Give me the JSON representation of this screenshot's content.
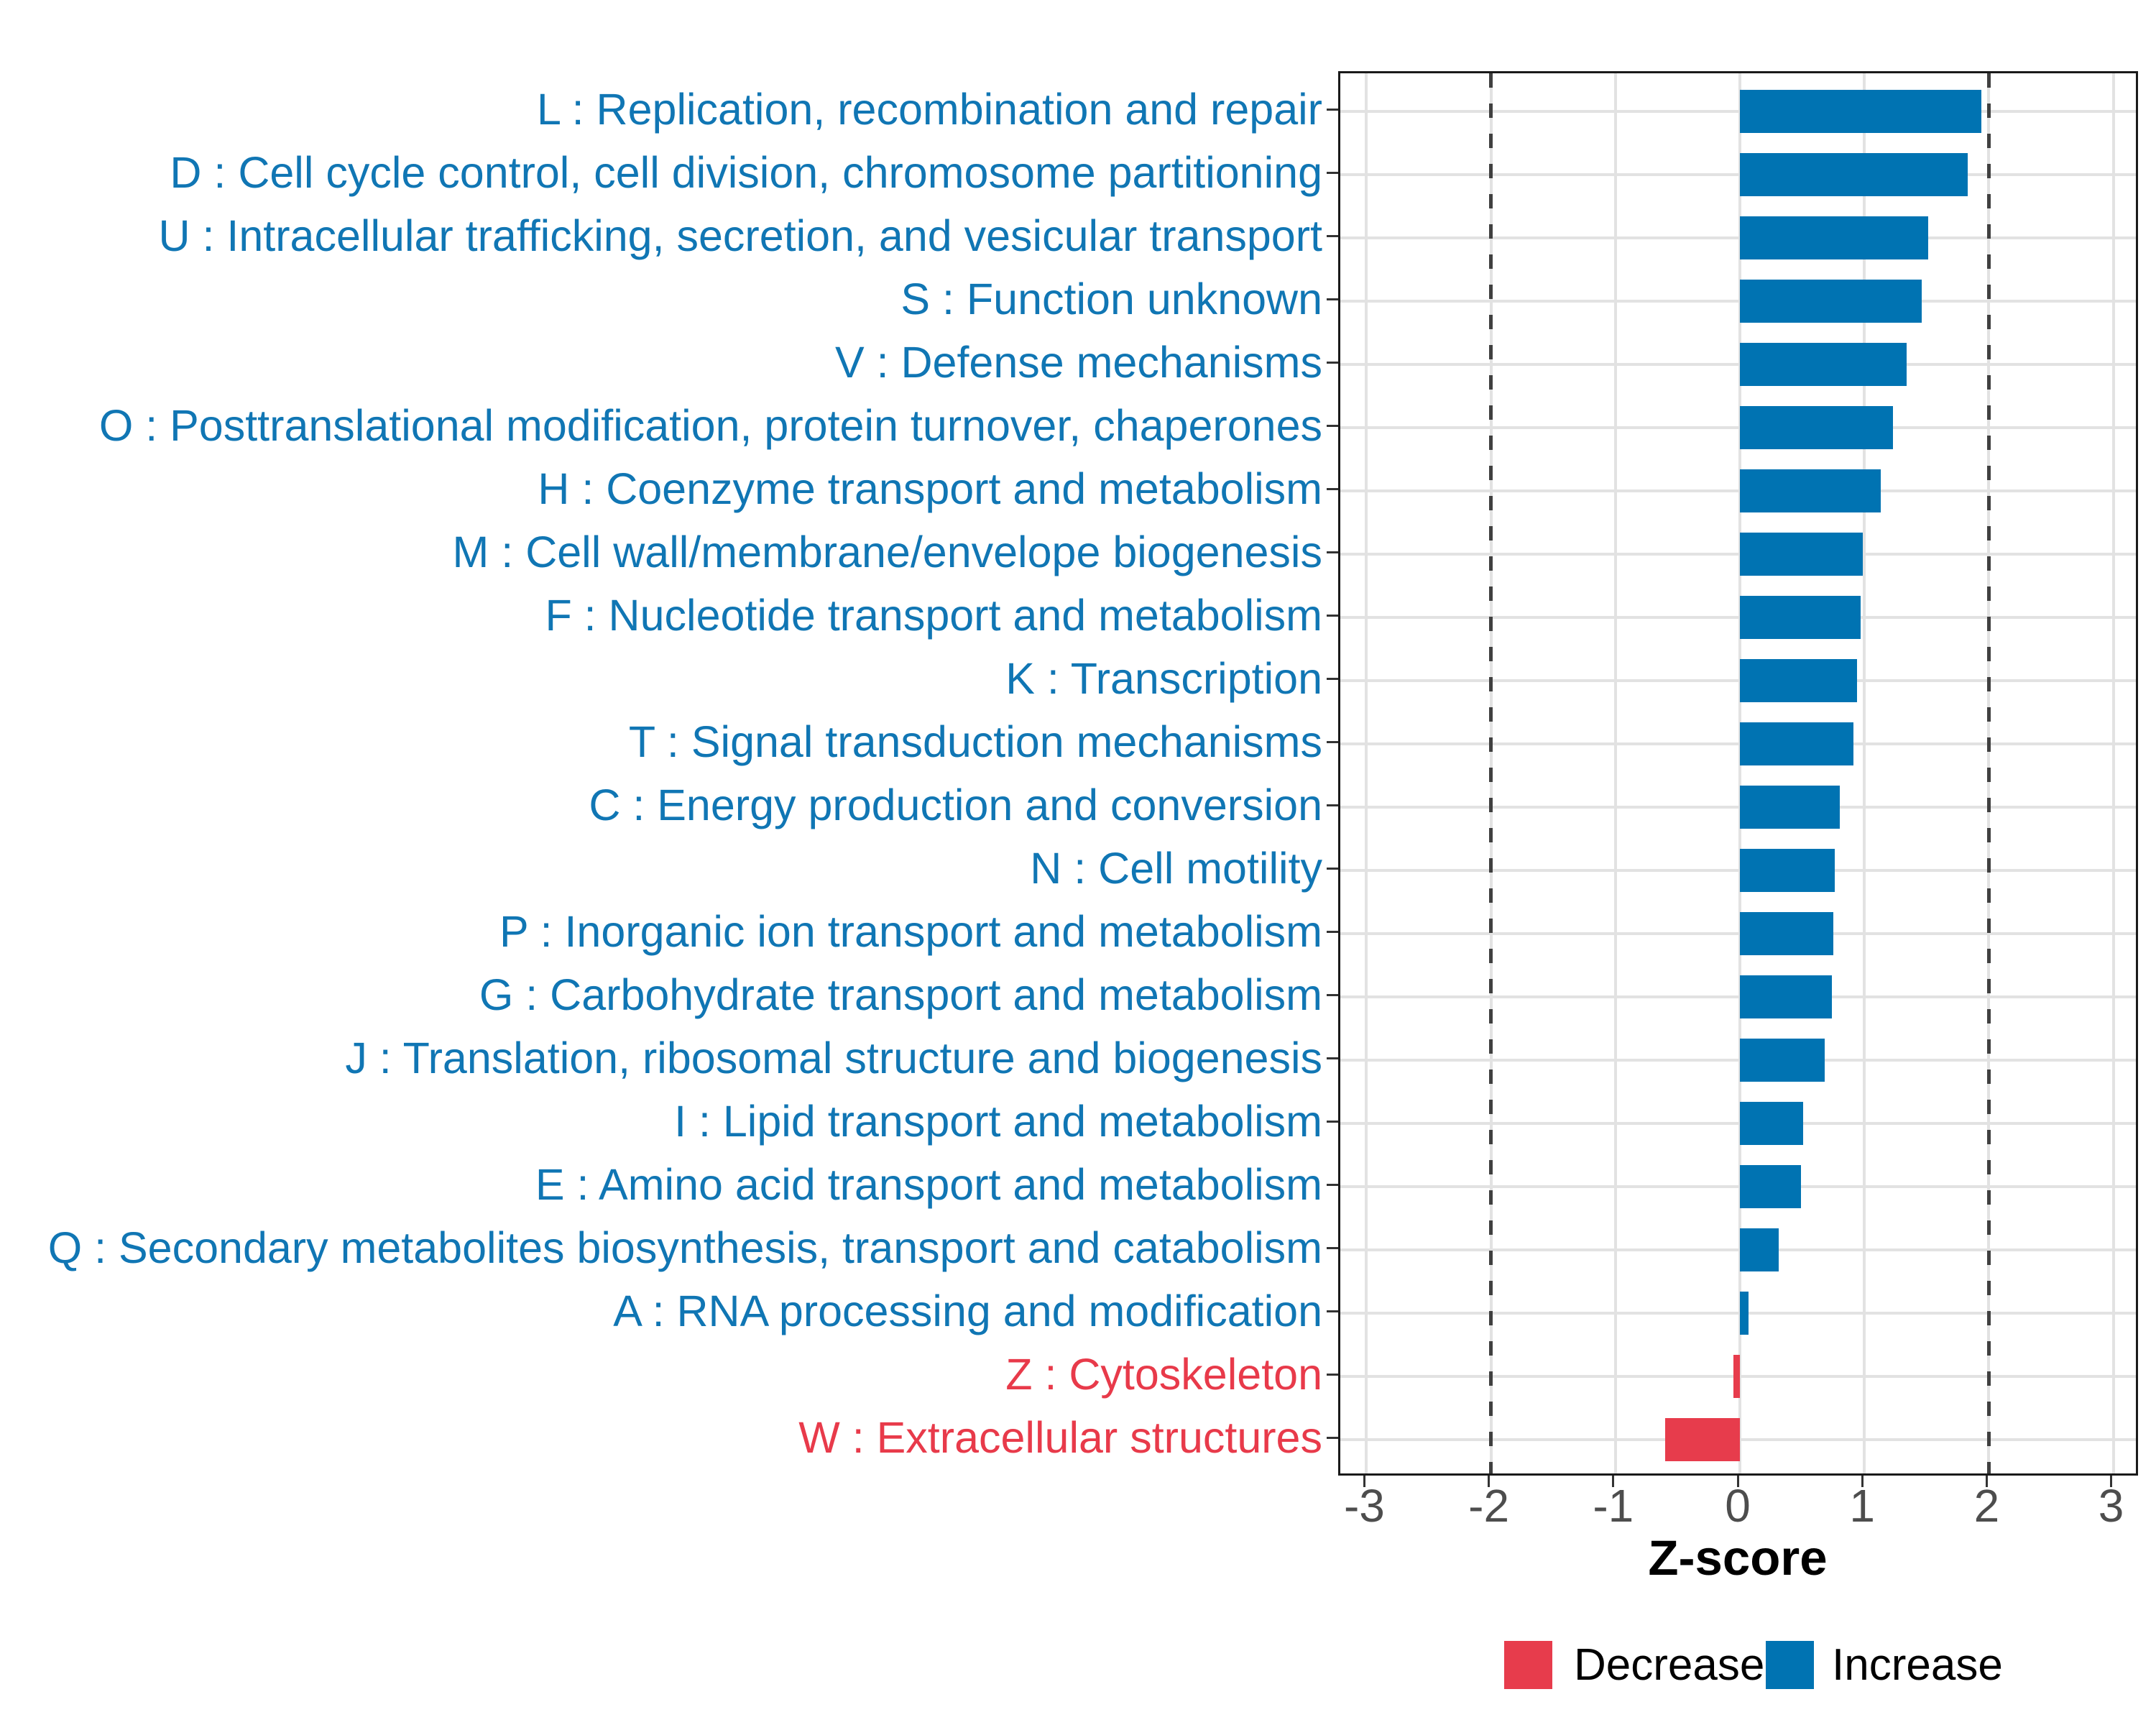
{
  "colors": {
    "increase_bar": "#0073B2",
    "decrease_bar": "#E73C4C",
    "increase_label": "#1076B4",
    "decrease_label": "#E83A4A",
    "grid": "#E2E2E2",
    "dashed_line": "#404040",
    "axis_text": "#4D4D4D",
    "axis_line": "#1A1A1A"
  },
  "legend": {
    "items": [
      {
        "label": "Decrease",
        "color": "#E73C4C"
      },
      {
        "label": "Increase",
        "color": "#0073B2"
      }
    ]
  },
  "chart_data": {
    "type": "bar",
    "orientation": "horizontal",
    "xlabel": "Z-score",
    "ylabel": "",
    "xlim": [
      -3.2,
      3.2
    ],
    "x_ticks": [
      -3,
      -2,
      -1,
      0,
      1,
      2,
      3
    ],
    "dashed_lines_at": [
      -2,
      2
    ],
    "grid": true,
    "legend_position": "bottom",
    "categories": [
      {
        "code": "L",
        "label": "L : Replication, recombination and repair",
        "value": 1.94,
        "group": "Increase"
      },
      {
        "code": "D",
        "label": "D : Cell cycle control, cell division, chromosome partitioning",
        "value": 1.83,
        "group": "Increase"
      },
      {
        "code": "U",
        "label": "U : Intracellular trafficking, secretion, and vesicular transport",
        "value": 1.51,
        "group": "Increase"
      },
      {
        "code": "S",
        "label": "S : Function unknown",
        "value": 1.46,
        "group": "Increase"
      },
      {
        "code": "V",
        "label": "V : Defense mechanisms",
        "value": 1.34,
        "group": "Increase"
      },
      {
        "code": "O",
        "label": "O : Posttranslational modification, protein turnover, chaperones",
        "value": 1.23,
        "group": "Increase"
      },
      {
        "code": "H",
        "label": "H : Coenzyme transport and metabolism",
        "value": 1.13,
        "group": "Increase"
      },
      {
        "code": "M",
        "label": "M : Cell wall/membrane/envelope biogenesis",
        "value": 0.99,
        "group": "Increase"
      },
      {
        "code": "F",
        "label": "F : Nucleotide transport and metabolism",
        "value": 0.97,
        "group": "Increase"
      },
      {
        "code": "K",
        "label": "K : Transcription",
        "value": 0.94,
        "group": "Increase"
      },
      {
        "code": "T",
        "label": "T : Signal transduction mechanisms",
        "value": 0.91,
        "group": "Increase"
      },
      {
        "code": "C",
        "label": "C : Energy production and conversion",
        "value": 0.8,
        "group": "Increase"
      },
      {
        "code": "N",
        "label": "N : Cell motility",
        "value": 0.76,
        "group": "Increase"
      },
      {
        "code": "P",
        "label": "P : Inorganic ion transport and metabolism",
        "value": 0.75,
        "group": "Increase"
      },
      {
        "code": "G",
        "label": "G : Carbohydrate transport and metabolism",
        "value": 0.74,
        "group": "Increase"
      },
      {
        "code": "J",
        "label": "J : Translation, ribosomal structure and biogenesis",
        "value": 0.68,
        "group": "Increase"
      },
      {
        "code": "I",
        "label": "I : Lipid transport and metabolism",
        "value": 0.51,
        "group": "Increase"
      },
      {
        "code": "E",
        "label": "E : Amino acid transport and metabolism",
        "value": 0.49,
        "group": "Increase"
      },
      {
        "code": "Q",
        "label": "Q : Secondary metabolites biosynthesis, transport and catabolism",
        "value": 0.31,
        "group": "Increase"
      },
      {
        "code": "A",
        "label": "A : RNA processing and modification",
        "value": 0.07,
        "group": "Increase"
      },
      {
        "code": "Z",
        "label": "Z : Cytoskeleton",
        "value": -0.05,
        "group": "Decrease"
      },
      {
        "code": "W",
        "label": "W : Extracellular structures",
        "value": -0.6,
        "group": "Decrease"
      }
    ]
  }
}
